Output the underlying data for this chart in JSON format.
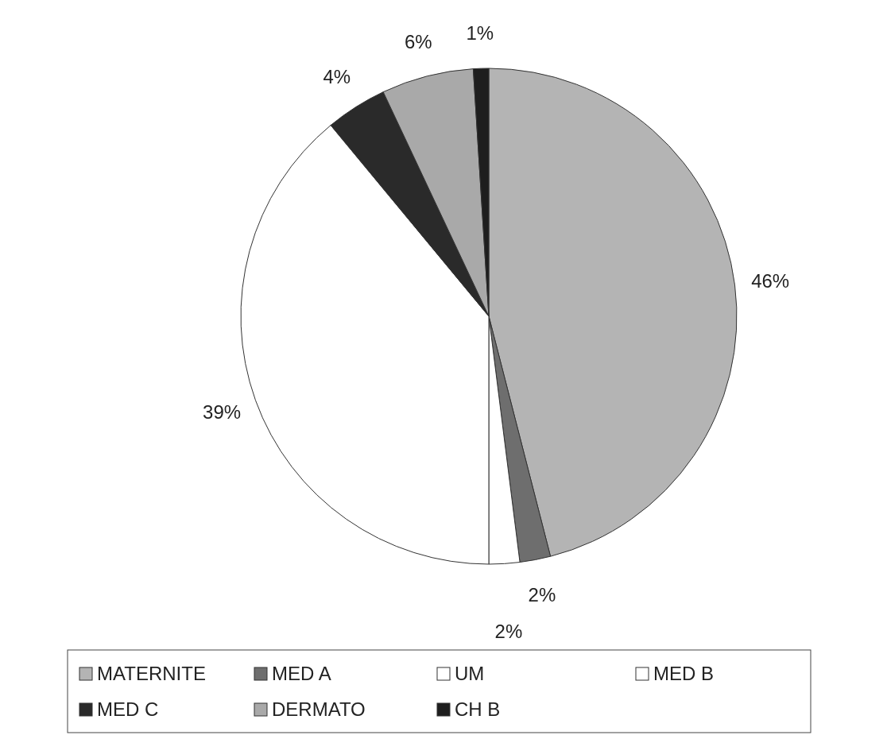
{
  "chart_data": {
    "type": "pie",
    "categories": [
      "MATERNITE",
      "MED A",
      "UM",
      "MED B",
      "MED C",
      "DERMATO",
      "CH B"
    ],
    "values": [
      46,
      2,
      2,
      39,
      4,
      6,
      1
    ],
    "colors": [
      "#b4b4b4",
      "#6e6e6e",
      "#ffffff",
      "#ffffff",
      "#2a2a2a",
      "#a9a9a9",
      "#1e1e1e"
    ],
    "value_labels": [
      "46%",
      "2%",
      "2%",
      "39%",
      "4%",
      "6%",
      "1%"
    ],
    "legend": "bottom"
  }
}
